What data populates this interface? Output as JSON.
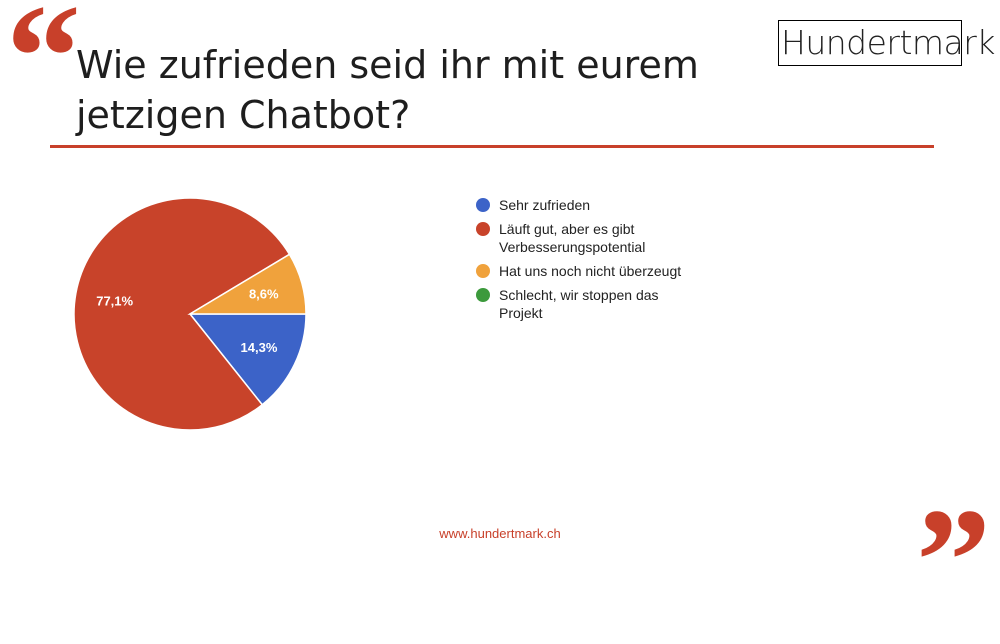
{
  "slide": {
    "title": "Wie zufrieden seid ihr mit eurem jetzigen Chatbot?",
    "logo_text": "Hundertmark",
    "footer_url": "www.hundertmark.ch",
    "open_quote": "“",
    "close_quote": "”",
    "accent_color": "#c8402a"
  },
  "chart_data": {
    "type": "pie",
    "start": "3 o'clock, clockwise",
    "legend_position": "right",
    "series": [
      {
        "name": "Sehr zufrieden",
        "value": 14.3,
        "label": "14,3%",
        "color": "#3c63c8"
      },
      {
        "name": "Läuft gut, aber es gibt Verbesserungspotential",
        "value": 77.1,
        "label": "77,1%",
        "color": "#c8432a"
      },
      {
        "name": "Hat uns noch nicht überzeugt",
        "value": 8.6,
        "label": "8,6%",
        "color": "#f0a23c"
      },
      {
        "name": "Schlecht, wir stoppen das Projekt",
        "value": 0,
        "label": "",
        "color": "#3c9a3c"
      }
    ]
  }
}
